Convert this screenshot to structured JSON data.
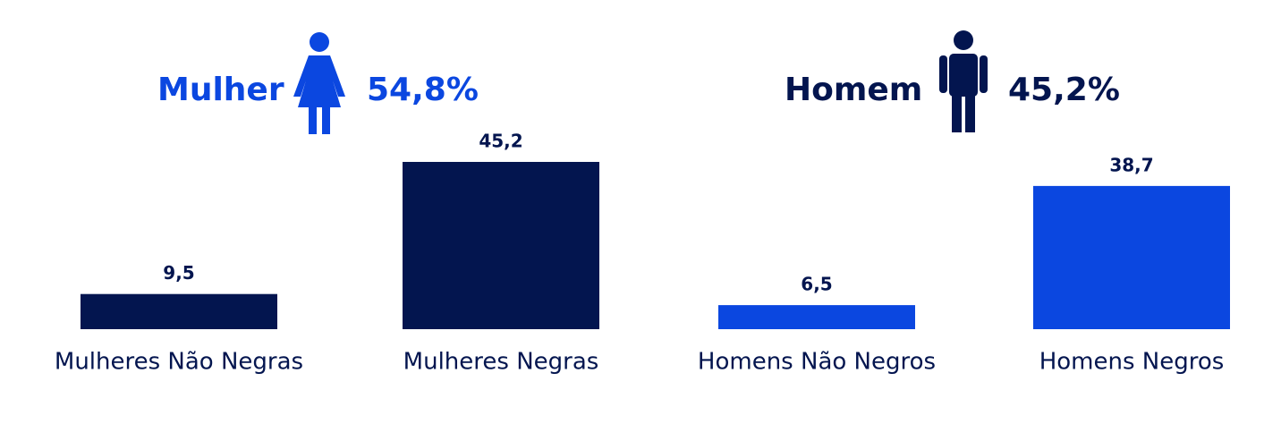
{
  "chart_data": {
    "type": "bar",
    "categories": [
      "Mulheres Não Negras",
      "Mulheres Negras",
      "Homens Não Negros",
      "Homens Negros"
    ],
    "values": [
      9.5,
      45.2,
      6.5,
      38.7
    ],
    "value_labels": [
      "9,5",
      "45,2",
      "6,5",
      "38,7"
    ],
    "colors": [
      "#03154f",
      "#03154f",
      "#0b47e0",
      "#0b47e0"
    ],
    "groups": [
      {
        "label": "Mulher",
        "value": 54.8,
        "value_label": "54,8%",
        "color": "#0b47e0"
      },
      {
        "label": "Homem",
        "value": 45.2,
        "value_label": "45,2%",
        "color": "#03154f"
      }
    ]
  }
}
